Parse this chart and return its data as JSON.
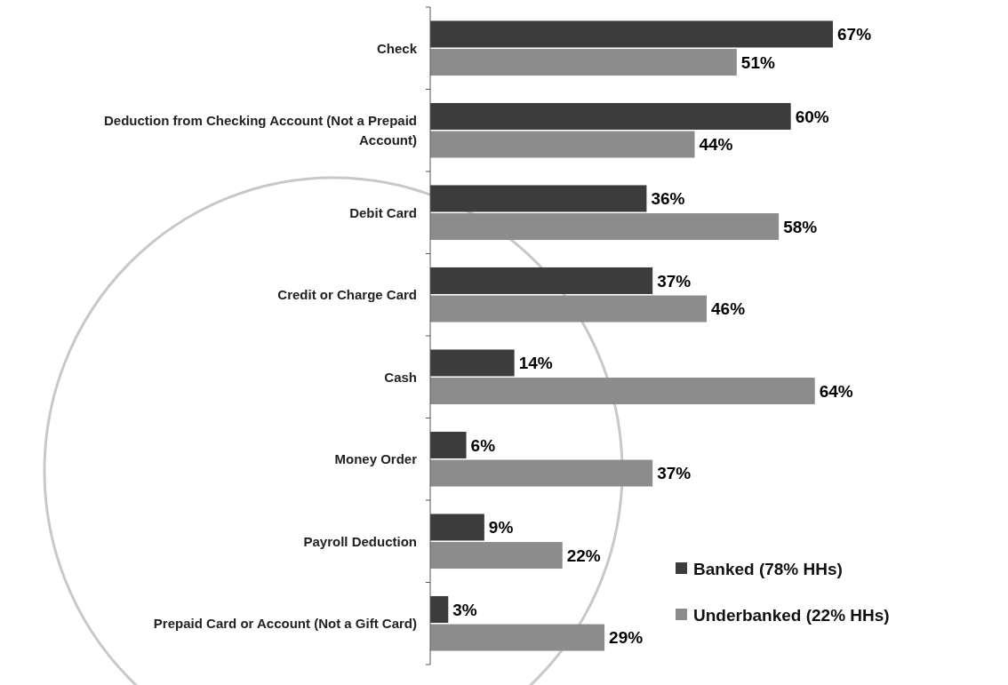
{
  "chart_data": {
    "type": "bar",
    "orientation": "horizontal",
    "categories": [
      "Check",
      "Deduction from Checking Account (Not a Prepaid Account)",
      "Debit Card",
      "Credit or Charge Card",
      "Cash",
      "Money Order",
      "Payroll Deduction",
      "Prepaid Card or Account (Not a Gift Card)"
    ],
    "series": [
      {
        "name": "Banked (78% HHs)",
        "color": "#3c3c3c",
        "values": [
          67,
          60,
          36,
          37,
          14,
          6,
          9,
          3
        ],
        "value_labels": [
          "67%",
          "60%",
          "36%",
          "37%",
          "14%",
          "6%",
          "9%",
          "3%"
        ]
      },
      {
        "name": "Underbanked (22% HHs)",
        "color": "#8c8c8c",
        "values": [
          51,
          44,
          58,
          46,
          64,
          37,
          22,
          29
        ],
        "value_labels": [
          "51%",
          "44%",
          "58%",
          "46%",
          "64%",
          "37%",
          "22%",
          "29%"
        ]
      }
    ],
    "legend": "bottom right"
  }
}
